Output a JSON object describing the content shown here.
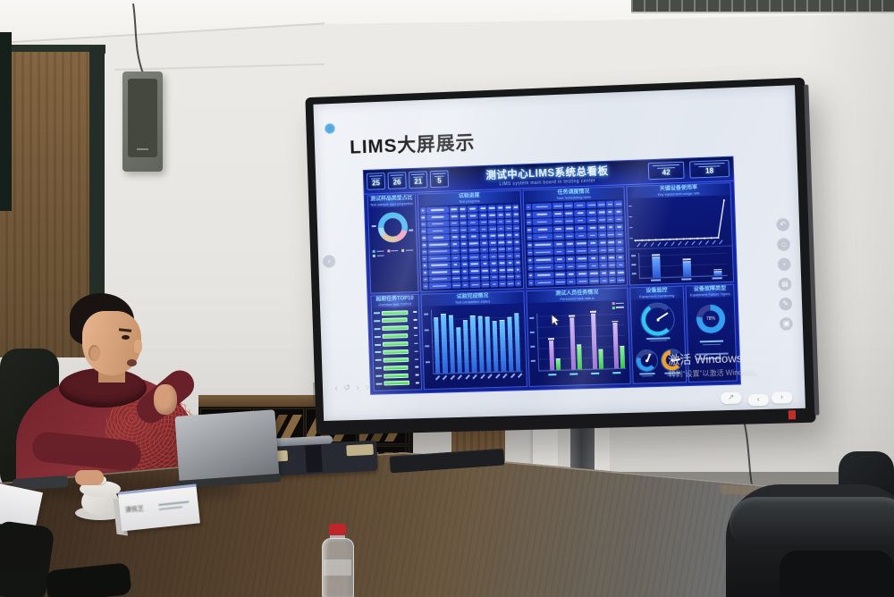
{
  "slide": {
    "title": "LIMS大屏展示"
  },
  "screen_watermark": {
    "line1": "激活 Windows",
    "line2": "转到“设置”以激活 Windows。"
  },
  "name_card": {
    "name": "谭佩芝"
  },
  "dashboard": {
    "title": "测试中心LIMS系统总看板",
    "subtitle": "LIMS system main board in testing center",
    "kpis_left": [
      "25",
      "26",
      "21",
      "5"
    ],
    "kpis_right": [
      "42",
      "18"
    ],
    "panels": {
      "sample_ratio": {
        "title": "测试样品类型占比",
        "subtitle": "Test sample type proportion"
      },
      "test_progress": {
        "title": "试验进度",
        "subtitle": "Test progress"
      },
      "task_schedule": {
        "title": "任务调度情况",
        "subtitle": "Task Scheduling table"
      },
      "equipment_usage": {
        "title": "关键设备使用率",
        "subtitle": "Key equipment usage rate"
      },
      "overdue": {
        "title": "超期任务TOP10",
        "subtitle": "Overdue task TOP10"
      },
      "completion": {
        "title": "试验完成情况",
        "subtitle": "Test completion status"
      },
      "personnel": {
        "title": "测试人员任务情况",
        "subtitle": "Personnel task status"
      },
      "monitoring": {
        "title": "设备监控",
        "subtitle": "Equipment monitoring"
      },
      "failure_types": {
        "title": "设备故障类型",
        "subtitle": "Equipment Failure Types"
      }
    }
  },
  "chart_data": [
    {
      "id": "sample-ratio-donut",
      "type": "pie",
      "segments": [
        {
          "value": 55,
          "color": "#4db8f0"
        },
        {
          "value": 15,
          "color": "#f0a0bc"
        },
        {
          "value": 20,
          "color": "#d8c49a"
        },
        {
          "value": 10,
          "color": "#9fd8f8"
        }
      ]
    },
    {
      "id": "test-progress-table",
      "type": "table",
      "columns": 10,
      "rows": 11,
      "col_weights": [
        5,
        22,
        9,
        7,
        11,
        8,
        8,
        7,
        7,
        6
      ]
    },
    {
      "id": "task-schedule-table",
      "type": "table",
      "columns": 9,
      "rows": 10,
      "col_weights": [
        5,
        20,
        11,
        9,
        12,
        10,
        8,
        7,
        8
      ]
    },
    {
      "id": "equipment-usage-line",
      "type": "line",
      "ylim": [
        0,
        100
      ],
      "values": [
        2,
        2,
        2,
        2,
        2,
        2,
        2,
        2,
        2,
        2,
        2,
        2,
        2,
        92
      ]
    },
    {
      "id": "equipment-usage-bars",
      "type": "bar",
      "ylim": [
        0,
        100
      ],
      "values": [
        85,
        62,
        14
      ]
    },
    {
      "id": "overdue-bars",
      "type": "bar-horizontal",
      "xlim": [
        0,
        100
      ],
      "values": [
        96,
        94,
        95,
        93,
        94,
        92,
        93,
        91,
        90,
        94
      ]
    },
    {
      "id": "completion-bars",
      "type": "bar",
      "ylim": [
        0,
        100
      ],
      "values": [
        88,
        95,
        91,
        72,
        83,
        90,
        89,
        87,
        80,
        82,
        86,
        91
      ]
    },
    {
      "id": "personnel-grouped",
      "type": "bar-grouped",
      "ylim": [
        0,
        100
      ],
      "series": [
        {
          "name": "series-1",
          "color": "#b48ae0",
          "values": [
            52,
            92,
            99,
            80
          ]
        },
        {
          "name": "series-2",
          "color": "#52e060",
          "values": [
            20,
            44,
            34,
            38
          ]
        }
      ]
    },
    {
      "id": "monitor-gauges",
      "type": "gauge",
      "gauges": [
        {
          "value": 72,
          "color": "#2ec8f0"
        },
        {
          "value": 58,
          "color": "#2e9ff0"
        },
        {
          "value": 80,
          "color": "#f0a428"
        }
      ]
    },
    {
      "id": "failure-donut",
      "type": "donut",
      "value": 78,
      "color": "#339ff0",
      "center_label": "78%"
    }
  ]
}
